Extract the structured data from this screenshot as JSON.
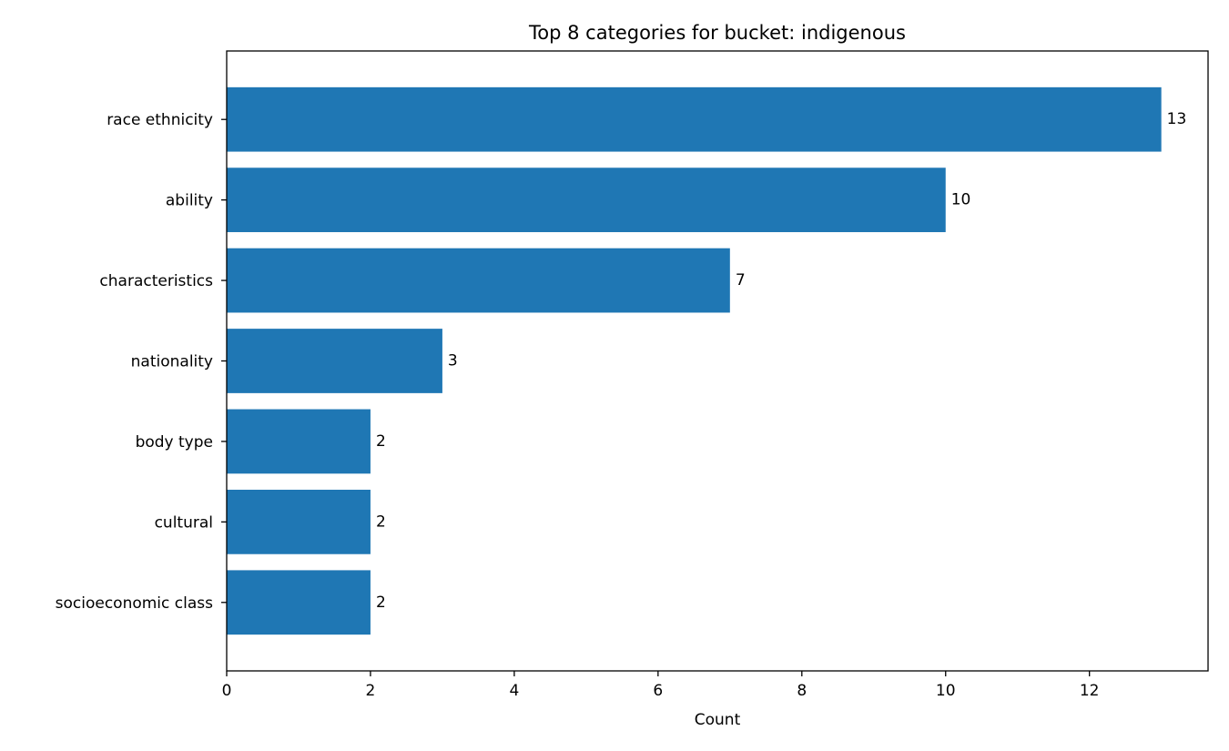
{
  "chart_data": {
    "type": "bar",
    "orientation": "horizontal",
    "title": "Top 8 categories for bucket: indigenous",
    "xlabel": "Count",
    "ylabel": "",
    "categories": [
      "race ethnicity",
      "ability",
      "characteristics",
      "nationality",
      "body type",
      "cultural",
      "socioeconomic class"
    ],
    "values": [
      13,
      10,
      7,
      3,
      2,
      2,
      2
    ],
    "xlim": [
      0,
      13.65
    ],
    "xticks": [
      0,
      2,
      4,
      6,
      8,
      10,
      12
    ],
    "grid": false,
    "legend": "none",
    "bar_color": "#1f77b4",
    "show_value_labels": true
  }
}
